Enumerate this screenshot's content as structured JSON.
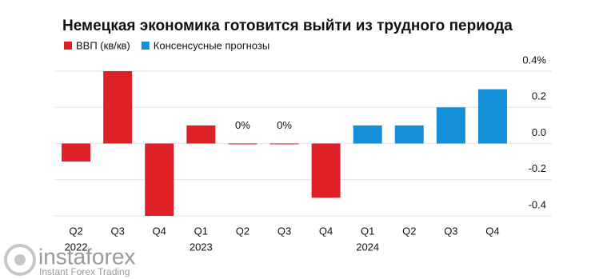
{
  "chart_data": {
    "type": "bar",
    "title": "Немецкая экономика готовится выйти из трудного периода",
    "categories": [
      "Q2",
      "Q3",
      "Q4",
      "Q1",
      "Q2",
      "Q3",
      "Q4",
      "Q1",
      "Q2",
      "Q3",
      "Q4"
    ],
    "category_years": [
      "2022",
      null,
      null,
      "2023",
      null,
      null,
      null,
      "2024",
      null,
      null,
      null
    ],
    "series": [
      {
        "name": "ВВП (кв/кв)",
        "color": "#dd2127",
        "values": [
          -0.1,
          0.4,
          -0.4,
          0.1,
          0,
          0,
          -0.3,
          null,
          null,
          null,
          null
        ],
        "value_labels": [
          null,
          null,
          null,
          null,
          "0%",
          "0%",
          null,
          null,
          null,
          null,
          null
        ]
      },
      {
        "name": "Консенсусные прогнозы",
        "color": "#1490d8",
        "values": [
          null,
          null,
          null,
          null,
          null,
          null,
          null,
          0.1,
          0.1,
          0.2,
          0.3
        ]
      }
    ],
    "ylim": [
      -0.4,
      0.4
    ],
    "yticks": [
      {
        "value": 0.4,
        "label": "0.4%"
      },
      0.2,
      {
        "value": 0,
        "label": "0.0"
      },
      -0.2,
      -0.4
    ],
    "grid": true
  },
  "watermark": {
    "brand": "instaforex",
    "tagline": "Instant Forex Trading"
  }
}
